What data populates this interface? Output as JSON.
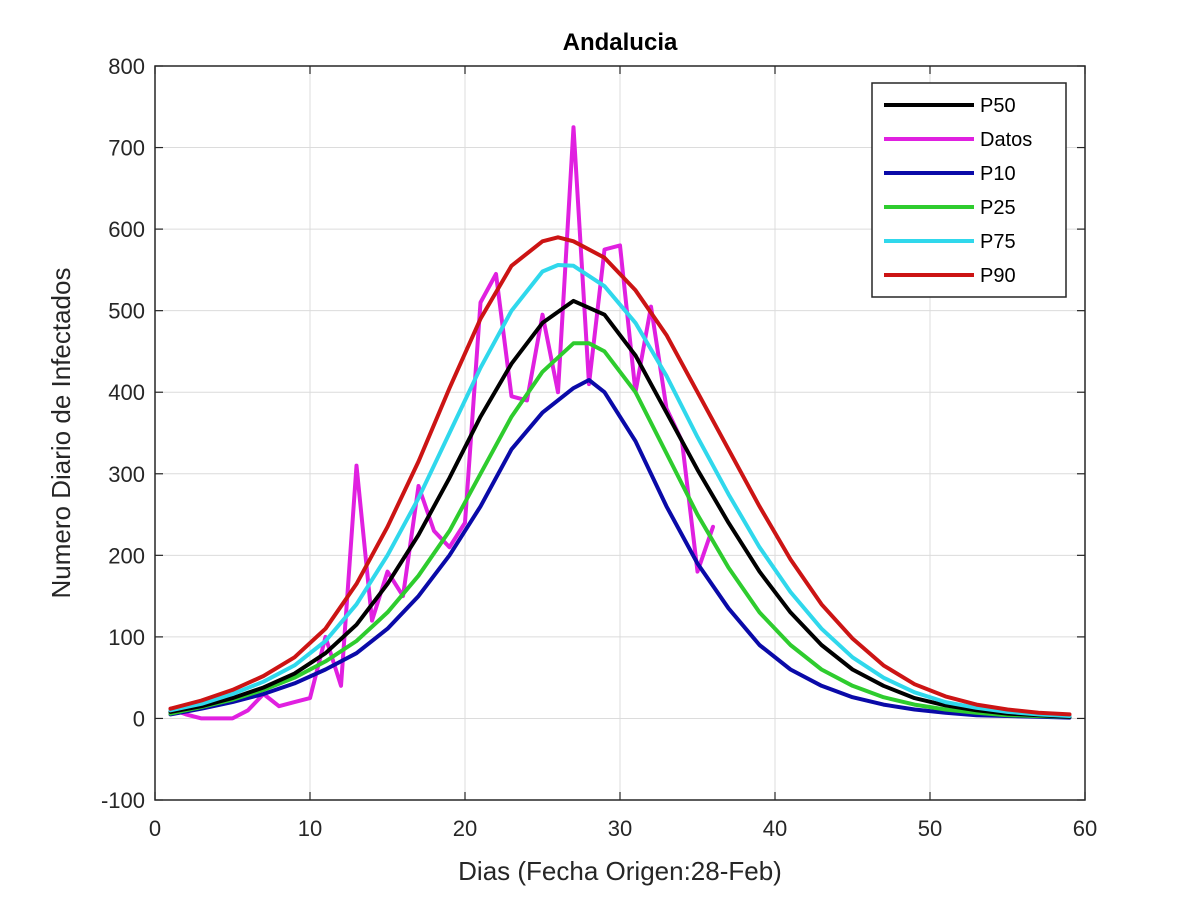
{
  "chart_data": {
    "type": "line",
    "title": "Andalucia",
    "xlabel": "Dias (Fecha Origen:28-Feb)",
    "ylabel": "Numero Diario de Infectados",
    "xlim": [
      0,
      60
    ],
    "ylim": [
      -100,
      800
    ],
    "xticks": [
      0,
      10,
      20,
      30,
      40,
      50,
      60
    ],
    "yticks": [
      -100,
      0,
      100,
      200,
      300,
      400,
      500,
      600,
      700,
      800
    ],
    "xtick_labels": [
      "0",
      "10",
      "20",
      "30",
      "40",
      "50",
      "60"
    ],
    "ytick_labels": [
      "-100",
      "0",
      "100",
      "200",
      "300",
      "400",
      "500",
      "600",
      "700",
      "800"
    ],
    "grid": true,
    "legend_position": "top-right",
    "series": [
      {
        "name": "P50",
        "color": "#000000",
        "x": [
          1,
          3,
          5,
          7,
          9,
          11,
          13,
          15,
          17,
          19,
          21,
          23,
          25,
          27,
          29,
          31,
          33,
          35,
          37,
          39,
          41,
          43,
          45,
          47,
          49,
          51,
          53,
          55,
          57,
          59
        ],
        "values": [
          8,
          15,
          25,
          38,
          55,
          80,
          115,
          165,
          225,
          295,
          370,
          435,
          485,
          512,
          495,
          445,
          375,
          305,
          240,
          180,
          130,
          90,
          60,
          40,
          25,
          16,
          10,
          6,
          4,
          2
        ]
      },
      {
        "name": "Datos",
        "color": "#e020e0",
        "x": [
          1,
          2,
          3,
          4,
          5,
          6,
          7,
          8,
          9,
          10,
          11,
          12,
          13,
          14,
          15,
          16,
          17,
          18,
          19,
          20,
          21,
          22,
          23,
          24,
          25,
          26,
          27,
          28,
          29,
          30,
          31,
          32,
          33,
          34,
          35,
          36
        ],
        "values": [
          12,
          5,
          0,
          0,
          0,
          10,
          30,
          15,
          20,
          25,
          100,
          40,
          310,
          120,
          180,
          150,
          285,
          230,
          210,
          240,
          510,
          545,
          395,
          390,
          495,
          400,
          725,
          410,
          575,
          580,
          400,
          505,
          380,
          340,
          180,
          235
        ]
      },
      {
        "name": "P10",
        "color": "#0a0aa8",
        "x": [
          1,
          3,
          5,
          7,
          9,
          11,
          13,
          15,
          17,
          19,
          21,
          23,
          25,
          27,
          28,
          29,
          31,
          33,
          35,
          37,
          39,
          41,
          43,
          45,
          47,
          49,
          51,
          53,
          55,
          57,
          59
        ],
        "values": [
          5,
          12,
          20,
          30,
          43,
          60,
          80,
          110,
          150,
          200,
          260,
          330,
          375,
          405,
          415,
          400,
          340,
          260,
          190,
          135,
          90,
          60,
          40,
          26,
          17,
          11,
          7,
          4,
          3,
          2,
          1
        ]
      },
      {
        "name": "P25",
        "color": "#2ecc2e",
        "x": [
          1,
          3,
          5,
          7,
          9,
          11,
          13,
          15,
          17,
          19,
          21,
          23,
          25,
          27,
          28,
          29,
          31,
          33,
          35,
          37,
          39,
          41,
          43,
          45,
          47,
          49,
          51,
          53,
          55,
          57,
          59
        ],
        "values": [
          6,
          14,
          23,
          35,
          50,
          70,
          95,
          130,
          175,
          230,
          300,
          370,
          425,
          460,
          460,
          450,
          400,
          325,
          250,
          185,
          130,
          90,
          60,
          40,
          26,
          17,
          11,
          7,
          4,
          3,
          2
        ]
      },
      {
        "name": "P75",
        "color": "#30d8ec",
        "x": [
          1,
          3,
          5,
          7,
          9,
          11,
          13,
          15,
          17,
          19,
          21,
          23,
          25,
          26,
          27,
          29,
          31,
          33,
          35,
          37,
          39,
          41,
          43,
          45,
          47,
          49,
          51,
          53,
          55,
          57,
          59
        ],
        "values": [
          10,
          18,
          30,
          45,
          65,
          95,
          140,
          200,
          270,
          350,
          430,
          500,
          548,
          556,
          555,
          530,
          485,
          420,
          345,
          275,
          210,
          155,
          110,
          75,
          50,
          32,
          20,
          13,
          8,
          5,
          3
        ]
      },
      {
        "name": "P90",
        "color": "#cc1414",
        "x": [
          1,
          3,
          5,
          7,
          9,
          11,
          13,
          15,
          17,
          19,
          21,
          23,
          25,
          26,
          27,
          29,
          31,
          33,
          35,
          37,
          39,
          41,
          43,
          45,
          47,
          49,
          51,
          53,
          55,
          57,
          59
        ],
        "values": [
          12,
          22,
          35,
          52,
          75,
          110,
          165,
          235,
          315,
          405,
          490,
          555,
          585,
          590,
          585,
          565,
          525,
          470,
          400,
          330,
          260,
          195,
          140,
          98,
          65,
          42,
          27,
          17,
          11,
          7,
          5
        ]
      }
    ]
  }
}
